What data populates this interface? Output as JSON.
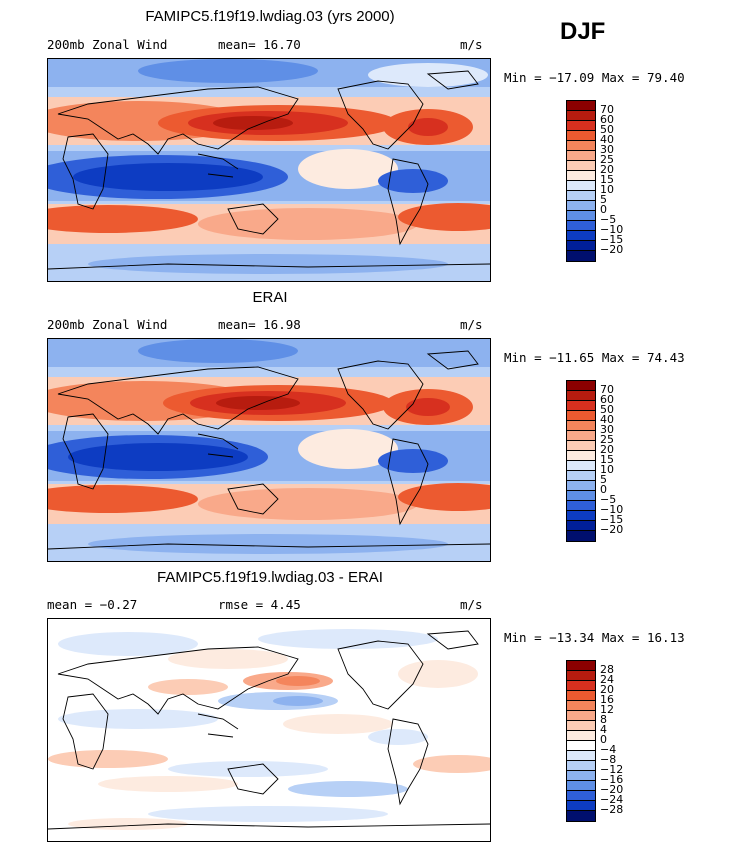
{
  "season": "DJF",
  "units": "m/s",
  "panels": [
    {
      "title": "FAMIPC5.f19f19.lwdiag.03 (yrs 2000)",
      "left_label": "200mb Zonal Wind",
      "stat": "mean=  16.70",
      "minmax": "Min = −17.09 Max =  79.40",
      "levels": [
        "70",
        "60",
        "50",
        "40",
        "30",
        "25",
        "20",
        "15",
        "10",
        "5",
        "0",
        "−5",
        "−10",
        "−15",
        "−20"
      ],
      "colors": [
        "#8b0000",
        "#b71c0f",
        "#d7301f",
        "#ec5a30",
        "#f4855c",
        "#f9a98a",
        "#fcccb5",
        "#fdebe0",
        "#dde9fb",
        "#b7d0f6",
        "#8db2ef",
        "#5f8fe6",
        "#2f5fd8",
        "#0d3cc2",
        "#001f99",
        "#000f6e"
      ]
    },
    {
      "title": "ERAI",
      "left_label": "200mb Zonal Wind",
      "stat": "mean=  16.98",
      "minmax": "Min = −11.65 Max =  74.43",
      "levels": [
        "70",
        "60",
        "50",
        "40",
        "30",
        "25",
        "20",
        "15",
        "10",
        "5",
        "0",
        "−5",
        "−10",
        "−15",
        "−20"
      ],
      "colors": [
        "#8b0000",
        "#b71c0f",
        "#d7301f",
        "#ec5a30",
        "#f4855c",
        "#f9a98a",
        "#fcccb5",
        "#fdebe0",
        "#dde9fb",
        "#b7d0f6",
        "#8db2ef",
        "#5f8fe6",
        "#2f5fd8",
        "#0d3cc2",
        "#001f99",
        "#000f6e"
      ]
    },
    {
      "title": "FAMIPC5.f19f19.lwdiag.03 - ERAI",
      "left_label": "mean =  −0.27",
      "stat": "rmse =   4.45",
      "minmax": "Min = −13.34 Max =  16.13",
      "levels": [
        "28",
        "24",
        "20",
        "16",
        "12",
        "8",
        "4",
        "0",
        "−4",
        "−8",
        "−12",
        "−16",
        "−20",
        "−24",
        "−28"
      ],
      "colors": [
        "#8b0000",
        "#b71c0f",
        "#d7301f",
        "#ec5a30",
        "#f4855c",
        "#f9a98a",
        "#fcccb5",
        "#fdebe0",
        "#ffffff",
        "#dde9fb",
        "#b7d0f6",
        "#8db2ef",
        "#5f8fe6",
        "#2f5fd8",
        "#0d3cc2",
        "#000f6e"
      ]
    }
  ]
}
